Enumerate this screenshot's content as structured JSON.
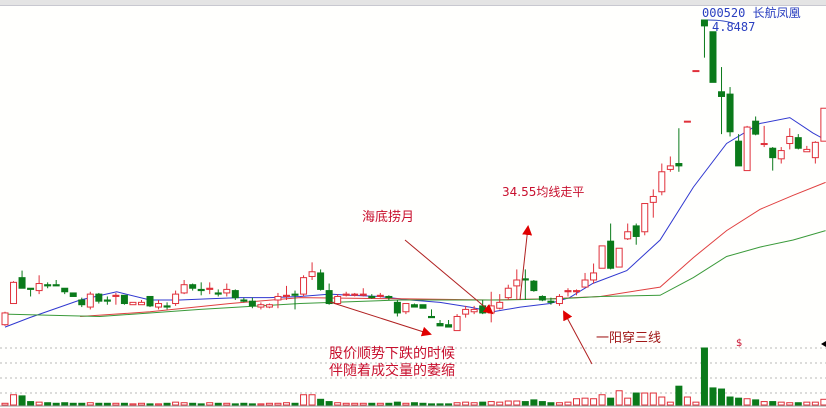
{
  "stock": {
    "code_name": "000520 长航凤凰",
    "peak_label": "4.8487"
  },
  "annotations": {
    "haidi": "海底捞月",
    "ma_flat": "34.55均线走平",
    "decline_line1": "股价顺势下跌的时候",
    "decline_line2": "伴随着成交量的萎缩",
    "yiyang": "一阳穿三线",
    "volume_marker": "$"
  },
  "colors": {
    "up": "#e0303a",
    "down": "#0a7a1a",
    "ma_short": "#3038d0",
    "ma_mid": "#e04040",
    "ma_long": "#3a9a3a",
    "annotation": "#c8102e"
  },
  "chart_data": {
    "type": "candlestick",
    "title": "000520 长航凤凰",
    "max_high_label": 4.8487,
    "candles_ohlc": [
      [
        2.26,
        2.36,
        2.37,
        2.25
      ],
      [
        2.44,
        2.62,
        2.63,
        2.44
      ],
      [
        2.66,
        2.57,
        2.72,
        2.57
      ],
      [
        2.57,
        2.56,
        2.57,
        2.5
      ],
      [
        2.55,
        2.61,
        2.68,
        2.52
      ],
      [
        2.6,
        2.59,
        2.62,
        2.57
      ],
      [
        2.6,
        2.59,
        2.64,
        2.59
      ],
      [
        2.57,
        2.54,
        2.57,
        2.52
      ],
      [
        2.53,
        2.5,
        2.53,
        2.5
      ],
      [
        2.47,
        2.43,
        2.49,
        2.41
      ],
      [
        2.41,
        2.52,
        2.54,
        2.39
      ],
      [
        2.52,
        2.46,
        2.53,
        2.44
      ],
      [
        2.47,
        2.46,
        2.5,
        2.43
      ],
      [
        2.5,
        2.51,
        2.53,
        2.43
      ],
      [
        2.51,
        2.44,
        2.51,
        2.43
      ],
      [
        2.43,
        2.45,
        2.45,
        2.43
      ],
      [
        2.43,
        2.45,
        2.47,
        2.43
      ],
      [
        2.5,
        2.42,
        2.5,
        2.41
      ],
      [
        2.41,
        2.44,
        2.47,
        2.39
      ],
      [
        2.42,
        2.41,
        2.45,
        2.39
      ],
      [
        2.44,
        2.52,
        2.55,
        2.42
      ],
      [
        2.53,
        2.6,
        2.64,
        2.52
      ],
      [
        2.6,
        2.57,
        2.61,
        2.55
      ],
      [
        2.56,
        2.55,
        2.62,
        2.51
      ],
      [
        2.56,
        2.57,
        2.62,
        2.52
      ],
      [
        2.53,
        2.52,
        2.56,
        2.5
      ],
      [
        2.53,
        2.56,
        2.61,
        2.5
      ],
      [
        2.55,
        2.49,
        2.56,
        2.47
      ],
      [
        2.47,
        2.46,
        2.49,
        2.45
      ],
      [
        2.46,
        2.42,
        2.49,
        2.4
      ],
      [
        2.41,
        2.43,
        2.45,
        2.39
      ],
      [
        2.41,
        2.43,
        2.44,
        2.4
      ],
      [
        2.47,
        2.5,
        2.53,
        2.4
      ],
      [
        2.5,
        2.51,
        2.59,
        2.47
      ],
      [
        2.52,
        2.51,
        2.55,
        2.39
      ],
      [
        2.52,
        2.66,
        2.68,
        2.5
      ],
      [
        2.67,
        2.71,
        2.79,
        2.64
      ],
      [
        2.7,
        2.56,
        2.73,
        2.55
      ],
      [
        2.55,
        2.44,
        2.61,
        2.43
      ],
      [
        2.44,
        2.5,
        2.52,
        2.43
      ],
      [
        2.51,
        2.52,
        2.54,
        2.5
      ],
      [
        2.51,
        2.52,
        2.53,
        2.5
      ],
      [
        2.51,
        2.52,
        2.57,
        2.5
      ],
      [
        2.5,
        2.49,
        2.52,
        2.48
      ],
      [
        2.5,
        2.51,
        2.53,
        2.49
      ],
      [
        2.5,
        2.49,
        2.51,
        2.47
      ],
      [
        2.45,
        2.36,
        2.47,
        2.33
      ],
      [
        2.37,
        2.44,
        2.44,
        2.35
      ],
      [
        2.43,
        2.41,
        2.44,
        2.41
      ],
      [
        2.43,
        2.4,
        2.43,
        2.4
      ],
      [
        2.33,
        2.32,
        2.39,
        2.32
      ],
      [
        2.27,
        2.25,
        2.3,
        2.25
      ],
      [
        2.26,
        2.24,
        2.3,
        2.24
      ],
      [
        2.21,
        2.33,
        2.35,
        2.21
      ],
      [
        2.35,
        2.39,
        2.42,
        2.32
      ],
      [
        2.37,
        2.39,
        2.42,
        2.35
      ],
      [
        2.42,
        2.36,
        2.47,
        2.35
      ],
      [
        2.36,
        2.42,
        2.54,
        2.28
      ],
      [
        2.4,
        2.45,
        2.52,
        2.39
      ],
      [
        2.49,
        2.57,
        2.6,
        2.47
      ],
      [
        2.59,
        2.64,
        2.73,
        2.47
      ],
      [
        2.65,
        2.64,
        2.73,
        2.47
      ],
      [
        2.63,
        2.55,
        2.64,
        2.54
      ],
      [
        2.5,
        2.47,
        2.51,
        2.46
      ],
      [
        2.46,
        2.45,
        2.49,
        2.43
      ],
      [
        2.44,
        2.5,
        2.52,
        2.42
      ],
      [
        2.54,
        2.55,
        2.57,
        2.5
      ],
      [
        2.54,
        2.55,
        2.56,
        2.51
      ],
      [
        2.58,
        2.64,
        2.7,
        2.58
      ],
      [
        2.64,
        2.7,
        2.78,
        2.61
      ],
      [
        2.74,
        2.93,
        2.93,
        2.74
      ],
      [
        2.97,
        2.74,
        3.12,
        2.73
      ],
      [
        2.75,
        2.91,
        2.91,
        2.75
      ],
      [
        2.99,
        3.05,
        3.12,
        2.98
      ],
      [
        3.1,
        3.01,
        3.12,
        2.94
      ],
      [
        3.05,
        3.29,
        3.29,
        3.02
      ],
      [
        3.3,
        3.35,
        3.41,
        3.17
      ],
      [
        3.39,
        3.56,
        3.63,
        3.36
      ],
      [
        3.58,
        3.61,
        3.69,
        3.56
      ],
      [
        3.63,
        3.61,
        3.93,
        3.56
      ],
      [
        3.99,
        3.99,
        3.99,
        3.99
      ],
      [
        4.42,
        4.42,
        4.42,
        4.42
      ],
      [
        4.85,
        4.8,
        4.85,
        4.53
      ],
      [
        4.75,
        4.32,
        4.75,
        4.32
      ],
      [
        4.24,
        4.2,
        4.45,
        3.88
      ],
      [
        4.22,
        3.9,
        4.28,
        3.86
      ],
      [
        3.82,
        3.61,
        3.88,
        3.61
      ],
      [
        3.57,
        3.94,
        3.95,
        3.57
      ],
      [
        3.99,
        3.88,
        4.03,
        3.87
      ],
      [
        3.8,
        3.8,
        3.95,
        3.77
      ],
      [
        3.76,
        3.68,
        3.77,
        3.57
      ],
      [
        3.67,
        3.74,
        3.77,
        3.63
      ],
      [
        3.8,
        3.86,
        3.93,
        3.75
      ],
      [
        3.85,
        3.76,
        3.88,
        3.75
      ],
      [
        3.73,
        3.75,
        3.78,
        3.73
      ],
      [
        3.68,
        3.81,
        3.82,
        3.63
      ],
      [
        3.82,
        4.1,
        4.1,
        3.82
      ]
    ],
    "volume_relative_to_peak": [
      3,
      18,
      16,
      6,
      5,
      4,
      3,
      4,
      3,
      3,
      4,
      3,
      3,
      3,
      3,
      2,
      3,
      2,
      2,
      3,
      5,
      4,
      3,
      2,
      4,
      3,
      3,
      2,
      3,
      2,
      2,
      3,
      3,
      4,
      3,
      18,
      18,
      10,
      6,
      4,
      3,
      3,
      3,
      3,
      3,
      3,
      5,
      3,
      4,
      3,
      2,
      2,
      2,
      4,
      5,
      4,
      5,
      6,
      5,
      7,
      7,
      6,
      9,
      6,
      4,
      4,
      5,
      11,
      12,
      11,
      18,
      12,
      25,
      12,
      21,
      21,
      21,
      14,
      5,
      33,
      14,
      5,
      100,
      30,
      28,
      14,
      12,
      11,
      9,
      6,
      6,
      5,
      4,
      4,
      5,
      5,
      10
    ],
    "moving_averages": [
      {
        "color": "#3038d0",
        "points": [
          [
            0,
            2.24
          ],
          [
            2.9,
            2.32
          ],
          [
            8.8,
            2.47
          ],
          [
            13.1,
            2.54
          ],
          [
            17,
            2.47
          ],
          [
            20.5,
            2.47
          ],
          [
            24,
            2.48
          ],
          [
            27.5,
            2.49
          ],
          [
            31,
            2.49
          ],
          [
            34.6,
            2.5
          ],
          [
            38.1,
            2.52
          ],
          [
            40.4,
            2.51
          ],
          [
            44,
            2.5
          ],
          [
            47.5,
            2.47
          ],
          [
            51,
            2.45
          ],
          [
            54.5,
            2.41
          ],
          [
            57.2,
            2.37
          ],
          [
            60.4,
            2.41
          ],
          [
            63.9,
            2.44
          ],
          [
            66.2,
            2.49
          ],
          [
            68.9,
            2.61
          ],
          [
            72.9,
            2.72
          ],
          [
            76.8,
            2.98
          ],
          [
            80.7,
            3.43
          ],
          [
            84.6,
            3.8
          ],
          [
            88.5,
            3.97
          ],
          [
            92,
            4.02
          ],
          [
            94.7,
            3.89
          ],
          [
            96.2,
            3.83
          ]
        ]
      },
      {
        "color": "#e04040",
        "points": [
          [
            8.8,
            2.33
          ],
          [
            17,
            2.37
          ],
          [
            26.4,
            2.44
          ],
          [
            34.6,
            2.49
          ],
          [
            46.3,
            2.48
          ],
          [
            56.9,
            2.47
          ],
          [
            63.9,
            2.48
          ],
          [
            69.8,
            2.5
          ],
          [
            76.8,
            2.58
          ],
          [
            80.7,
            2.83
          ],
          [
            84.6,
            3.06
          ],
          [
            88.5,
            3.24
          ],
          [
            92.4,
            3.36
          ],
          [
            96.2,
            3.47
          ]
        ]
      },
      {
        "color": "#3a9a3a",
        "points": [
          [
            0,
            2.35
          ],
          [
            11.1,
            2.33
          ],
          [
            22.9,
            2.39
          ],
          [
            34.6,
            2.44
          ],
          [
            46.3,
            2.47
          ],
          [
            58,
            2.47
          ],
          [
            65,
            2.48
          ],
          [
            69.8,
            2.5
          ],
          [
            76.8,
            2.51
          ],
          [
            80.7,
            2.66
          ],
          [
            84.6,
            2.84
          ],
          [
            88.5,
            2.92
          ],
          [
            92.4,
            2.98
          ],
          [
            96.2,
            3.06
          ]
        ]
      }
    ],
    "grid": true
  }
}
